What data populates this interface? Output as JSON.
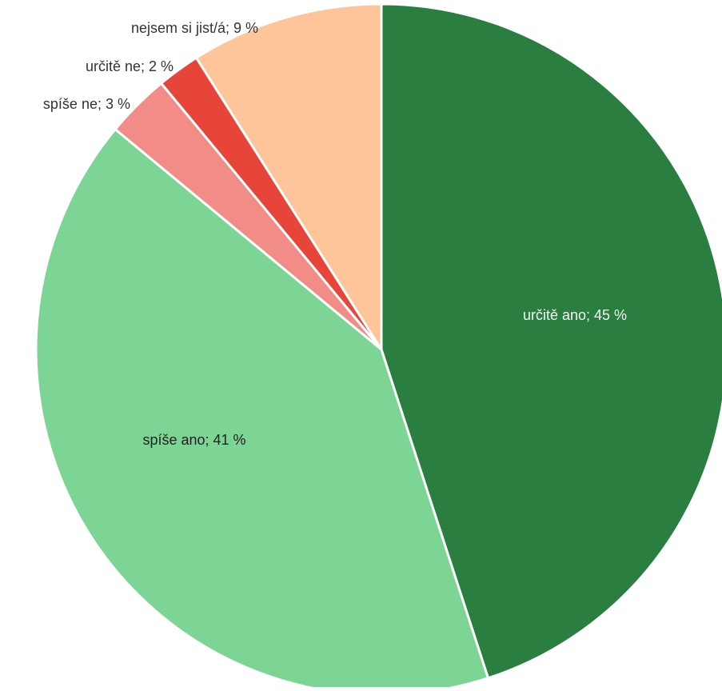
{
  "chart_data": {
    "type": "pie",
    "title": "",
    "slices": [
      {
        "label": "určitě ano",
        "value": 45,
        "display": "určitě ano; 45 %",
        "color": "#2a7f40"
      },
      {
        "label": "spíše ano",
        "value": 41,
        "display": "spíše ano; 41 %",
        "color": "#7cd594"
      },
      {
        "label": "spíše ne",
        "value": 3,
        "display": "spíše ne; 3 %",
        "color": "#f28c86"
      },
      {
        "label": "určitě ne",
        "value": 2,
        "display": "určitě ne; 2 %",
        "color": "#e8453a"
      },
      {
        "label": "nejsem si jist/á",
        "value": 9,
        "display": "nejsem si jist/á; 9 %",
        "color": "#fec49a"
      }
    ],
    "label_colors": {
      "inside_dark_slice": "#f3f3f3",
      "inside_light_slice": "#222222",
      "outside": "#333333"
    }
  }
}
